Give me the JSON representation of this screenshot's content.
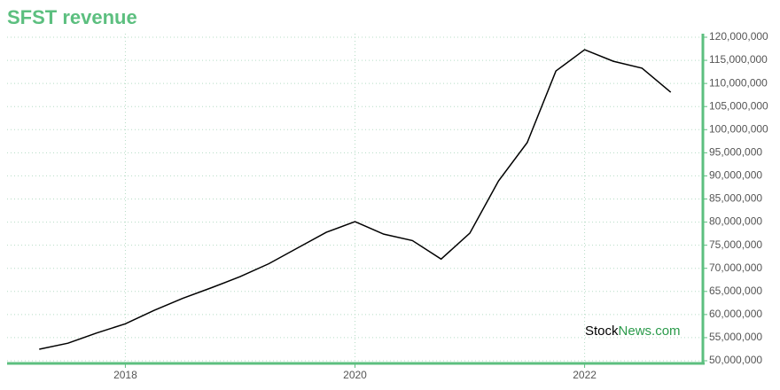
{
  "chart_data": {
    "type": "line",
    "title": "SFST revenue",
    "watermark": [
      "Stock",
      "News.com"
    ],
    "x": [
      2017.25,
      2017.5,
      2017.75,
      2018,
      2018.25,
      2018.5,
      2018.75,
      2019,
      2019.25,
      2019.5,
      2019.75,
      2020,
      2020.25,
      2020.5,
      2020.75,
      2021,
      2021.25,
      2021.5,
      2021.75,
      2022,
      2022.25,
      2022.5,
      2022.75
    ],
    "series": [
      {
        "name": "revenue",
        "color": "#000000",
        "values": [
          52500000,
          53800000,
          56000000,
          58000000,
          60900000,
          63500000,
          65800000,
          68200000,
          71000000,
          74400000,
          77800000,
          80100000,
          77400000,
          76000000,
          72000000,
          77600000,
          88900000,
          97200000,
          112700000,
          117300000,
          114800000,
          113300000,
          108100000
        ]
      }
    ],
    "xlim": [
      2016.97,
      2023.03
    ],
    "xticks": [
      2018,
      2020,
      2022
    ],
    "ylim": [
      50000000,
      120000000
    ],
    "yticks": [
      {
        "value": 50000000,
        "label": "50,000,000"
      },
      {
        "value": 55000000,
        "label": "55,000,000"
      },
      {
        "value": 60000000,
        "label": "60,000,000"
      },
      {
        "value": 65000000,
        "label": "65,000,000"
      },
      {
        "value": 70000000,
        "label": "70,000,000"
      },
      {
        "value": 75000000,
        "label": "75,000,000"
      },
      {
        "value": 80000000,
        "label": "80,000,000"
      },
      {
        "value": 85000000,
        "label": "85,000,000"
      },
      {
        "value": 90000000,
        "label": "90,000,000"
      },
      {
        "value": 95000000,
        "label": "95,000,000"
      },
      {
        "value": 100000000,
        "label": "100,000,000"
      },
      {
        "value": 105000000,
        "label": "105,000,000"
      },
      {
        "value": 110000000,
        "label": "110,000,000"
      },
      {
        "value": 115000000,
        "label": "115,000,000"
      },
      {
        "value": 120000000,
        "label": "120,000,000"
      }
    ],
    "grid": true,
    "axis_color": "#5cbf7f"
  }
}
